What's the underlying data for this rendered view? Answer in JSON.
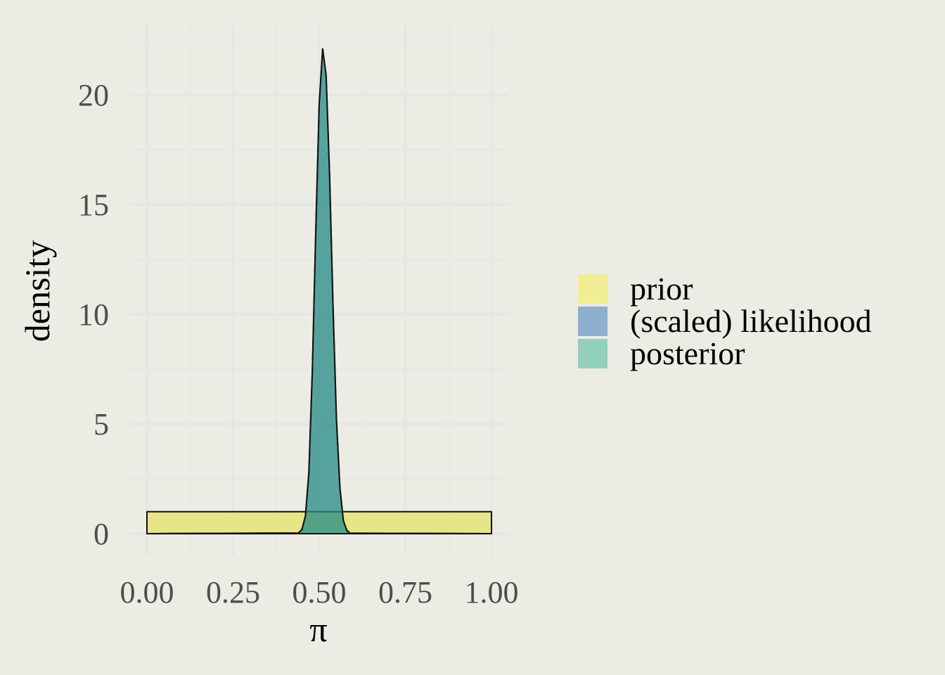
{
  "chart_data": {
    "type": "area",
    "xlabel": "π",
    "ylabel": "density",
    "xlim": [
      0,
      1
    ],
    "ylim": [
      -0.9,
      23.3
    ],
    "x_ticks": [
      0,
      0.25,
      0.5,
      0.75,
      1
    ],
    "x_tick_labels": [
      "0.00",
      "0.25",
      "0.50",
      "0.75",
      "1.00"
    ],
    "y_ticks": [
      0,
      5,
      10,
      15,
      20
    ],
    "y_tick_labels": [
      "0",
      "5",
      "10",
      "15",
      "20"
    ],
    "grid": true,
    "legend_position": "right",
    "background_color": "#ECECE4",
    "grid_color": "#E6E6E6",
    "series": [
      {
        "name": "prior",
        "color": "#E6E14D",
        "fill_opacity": 0.6,
        "x": [
          0,
          1
        ],
        "y": [
          1,
          1
        ]
      },
      {
        "name": "(scaled) likelihood",
        "color": "#1F5F9E",
        "fill_opacity": 0.5,
        "x": [
          0,
          0.44,
          0.45,
          0.46,
          0.47,
          0.48,
          0.49,
          0.5,
          0.51,
          0.52,
          0.53,
          0.54,
          0.55,
          0.56,
          0.57,
          0.58,
          0.59,
          1
        ],
        "y": [
          0,
          0.03,
          0.2,
          0.8,
          2.8,
          7.4,
          13.8,
          19.6,
          22.1,
          20.9,
          16.4,
          10.4,
          5.2,
          2.1,
          0.6,
          0.15,
          0.02,
          0
        ]
      },
      {
        "name": "posterior",
        "color": "#26A07A",
        "fill_opacity": 0.5,
        "x": [
          0,
          0.44,
          0.45,
          0.46,
          0.47,
          0.48,
          0.49,
          0.5,
          0.51,
          0.52,
          0.53,
          0.54,
          0.55,
          0.56,
          0.57,
          0.58,
          0.59,
          1
        ],
        "y": [
          0,
          0.03,
          0.2,
          0.8,
          2.8,
          7.4,
          13.8,
          19.6,
          22.1,
          20.9,
          16.4,
          10.4,
          5.2,
          2.1,
          0.6,
          0.15,
          0.02,
          0
        ]
      }
    ]
  }
}
